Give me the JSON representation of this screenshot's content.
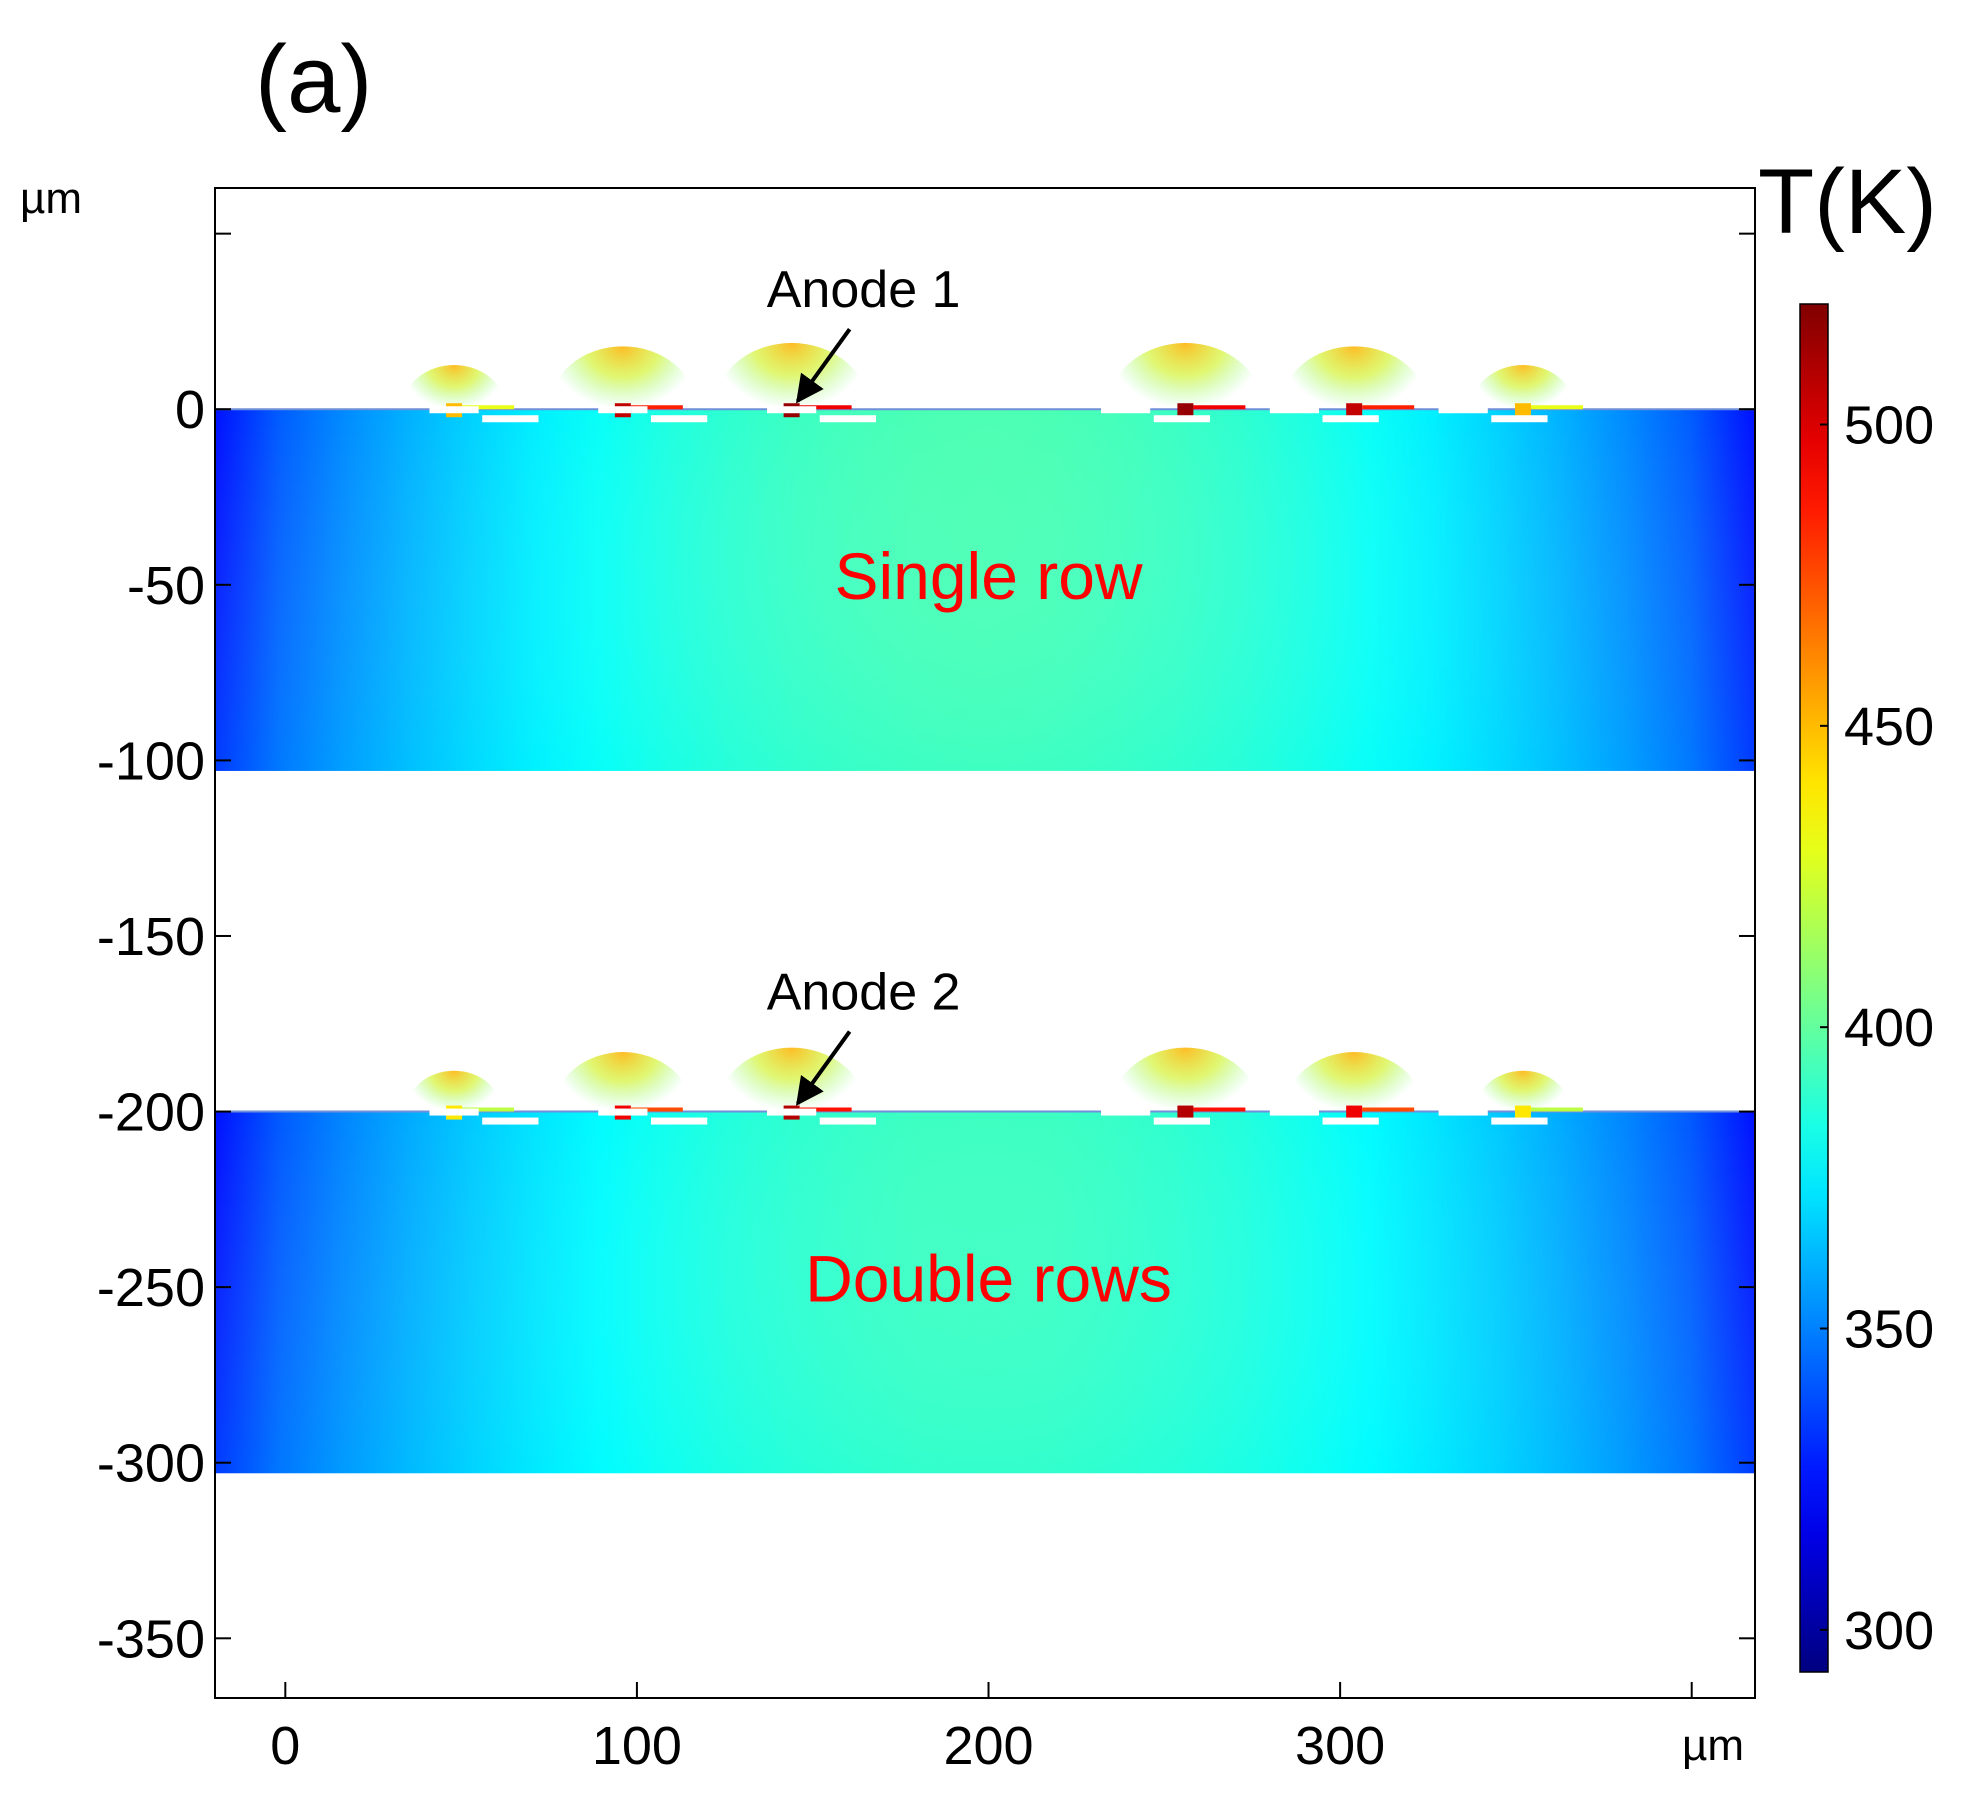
{
  "figure": {
    "panel_label": "(a)",
    "y_unit": "µm",
    "x_unit": "µm",
    "colorbar_title": "T(K)"
  },
  "chart_data": {
    "type": "heatmap",
    "title": "",
    "xlabel": "µm",
    "ylabel": "µm",
    "xlim": [
      -20,
      418
    ],
    "ylim": [
      -367,
      63
    ],
    "x_ticks": [
      0,
      100,
      200,
      300
    ],
    "y_ticks": [
      0,
      -50,
      -100,
      -150,
      -200,
      -250,
      -300,
      -350
    ],
    "colorbar": {
      "label": "T(K)",
      "min": 293,
      "max": 520,
      "ticks": [
        300,
        350,
        400,
        450,
        500
      ],
      "colormap": "jet"
    },
    "regions": [
      {
        "name": "Single row",
        "label": "Single row",
        "y_top": 0,
        "y_bottom": -103,
        "x_range": [
          -20,
          418
        ],
        "edge_temperature_K": 325,
        "center_temperature_K": 395,
        "anode_label": "Anode 1",
        "hotspots": [
          {
            "x": 48,
            "T": 450
          },
          {
            "x": 96,
            "T": 505
          },
          {
            "x": 144,
            "T": 515
          },
          {
            "x": 256,
            "T": 515
          },
          {
            "x": 304,
            "T": 505
          },
          {
            "x": 352,
            "T": 450
          }
        ]
      },
      {
        "name": "Double rows",
        "label": "Double rows",
        "y_top": -200,
        "y_bottom": -303,
        "x_range": [
          -20,
          418
        ],
        "edge_temperature_K": 325,
        "center_temperature_K": 392,
        "anode_label": "Anode 2",
        "hotspots": [
          {
            "x": 48,
            "T": 440
          },
          {
            "x": 96,
            "T": 495
          },
          {
            "x": 144,
            "T": 508
          },
          {
            "x": 256,
            "T": 508
          },
          {
            "x": 304,
            "T": 495
          },
          {
            "x": 352,
            "T": 440
          }
        ]
      }
    ],
    "electrodes": [
      {
        "x_start": 41,
        "x_end": 55
      },
      {
        "x_start": 56,
        "x_end": 72
      },
      {
        "x_start": 89,
        "x_end": 103
      },
      {
        "x_start": 104,
        "x_end": 120
      },
      {
        "x_start": 137,
        "x_end": 151
      },
      {
        "x_start": 152,
        "x_end": 168
      },
      {
        "x_start": 232,
        "x_end": 246
      },
      {
        "x_start": 247,
        "x_end": 263
      },
      {
        "x_start": 280,
        "x_end": 294
      },
      {
        "x_start": 295,
        "x_end": 311
      },
      {
        "x_start": 328,
        "x_end": 342
      },
      {
        "x_start": 343,
        "x_end": 359
      }
    ]
  }
}
